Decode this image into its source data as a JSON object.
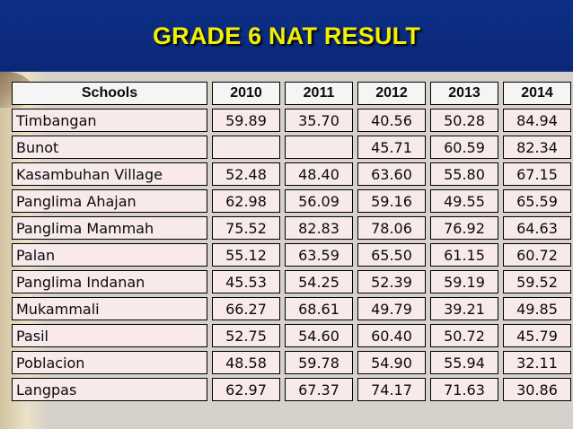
{
  "title": "GRADE 6 NAT RESULT",
  "table": {
    "headers": [
      "Schools",
      "2010",
      "2011",
      "2012",
      "2013",
      "2014"
    ],
    "rows": [
      [
        "Timbangan",
        "59.89",
        "35.70",
        "40.56",
        "50.28",
        "84.94"
      ],
      [
        "Bunot",
        "",
        "",
        "45.71",
        "60.59",
        "82.34"
      ],
      [
        "Kasambuhan Village",
        "52.48",
        "48.40",
        "63.60",
        "55.80",
        "67.15"
      ],
      [
        "Panglima Ahajan",
        "62.98",
        "56.09",
        "59.16",
        "49.55",
        "65.59"
      ],
      [
        "Panglima Mammah",
        "75.52",
        "82.83",
        "78.06",
        "76.92",
        "64.63"
      ],
      [
        "Palan",
        "55.12",
        "63.59",
        "65.50",
        "61.15",
        "60.72"
      ],
      [
        "Panglima Indanan",
        "45.53",
        "54.25",
        "52.39",
        "59.19",
        "59.52"
      ],
      [
        "Mukammali",
        "66.27",
        "68.61",
        "49.79",
        "39.21",
        "49.85"
      ],
      [
        "Pasil",
        "52.75",
        "54.60",
        "60.40",
        "50.72",
        "45.79"
      ],
      [
        "Poblacion",
        "48.58",
        "59.78",
        "54.90",
        "55.94",
        "32.11"
      ],
      [
        "Langpas",
        "62.97",
        "67.37",
        "74.17",
        "71.63",
        "30.86"
      ]
    ]
  },
  "colors": {
    "title_bar": "#0b2877",
    "title_text": "#f2ef00",
    "header_cell": "#f5f5f5",
    "data_cell": "#f8e9ea"
  }
}
